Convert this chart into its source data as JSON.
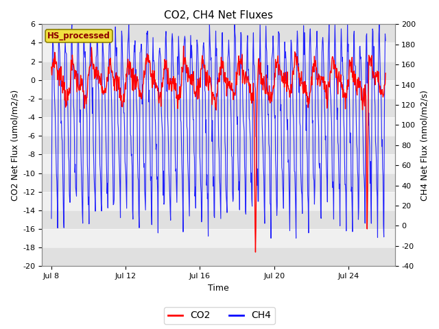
{
  "title": "CO2, CH4 Net Fluxes",
  "xlabel": "Time",
  "ylabel_left": "CO2 Net Flux (umol/m2/s)",
  "ylabel_right": "CH4 Net Flux (nmol/m2/s)",
  "ylim_left": [
    -20,
    6
  ],
  "ylim_right": [
    -40,
    200
  ],
  "yticks_left": [
    -20,
    -18,
    -16,
    -14,
    -12,
    -10,
    -8,
    -6,
    -4,
    -2,
    0,
    2,
    4,
    6
  ],
  "yticks_right": [
    -40,
    -20,
    0,
    20,
    40,
    60,
    80,
    100,
    120,
    140,
    160,
    180,
    200
  ],
  "xtick_positions": [
    8,
    12,
    16,
    20,
    24
  ],
  "xtick_labels": [
    "Jul 8",
    "Jul 12",
    "Jul 16",
    "Jul 20",
    "Jul 24"
  ],
  "xlim": [
    7.5,
    26.5
  ],
  "dataset_label": "HS_processed",
  "legend_entries": [
    "CO2",
    "CH4"
  ],
  "co2_color": "red",
  "ch4_color": "blue",
  "fig_bg": "#ffffff",
  "plot_bg": "#ffffff",
  "band_dark": "#e0e0e0",
  "band_light": "#f0f0f0",
  "title_fontsize": 11,
  "axis_label_fontsize": 9,
  "tick_fontsize": 8,
  "legend_fontsize": 10,
  "n_points": 800,
  "start_day": 8,
  "end_day": 26,
  "seed": 7
}
